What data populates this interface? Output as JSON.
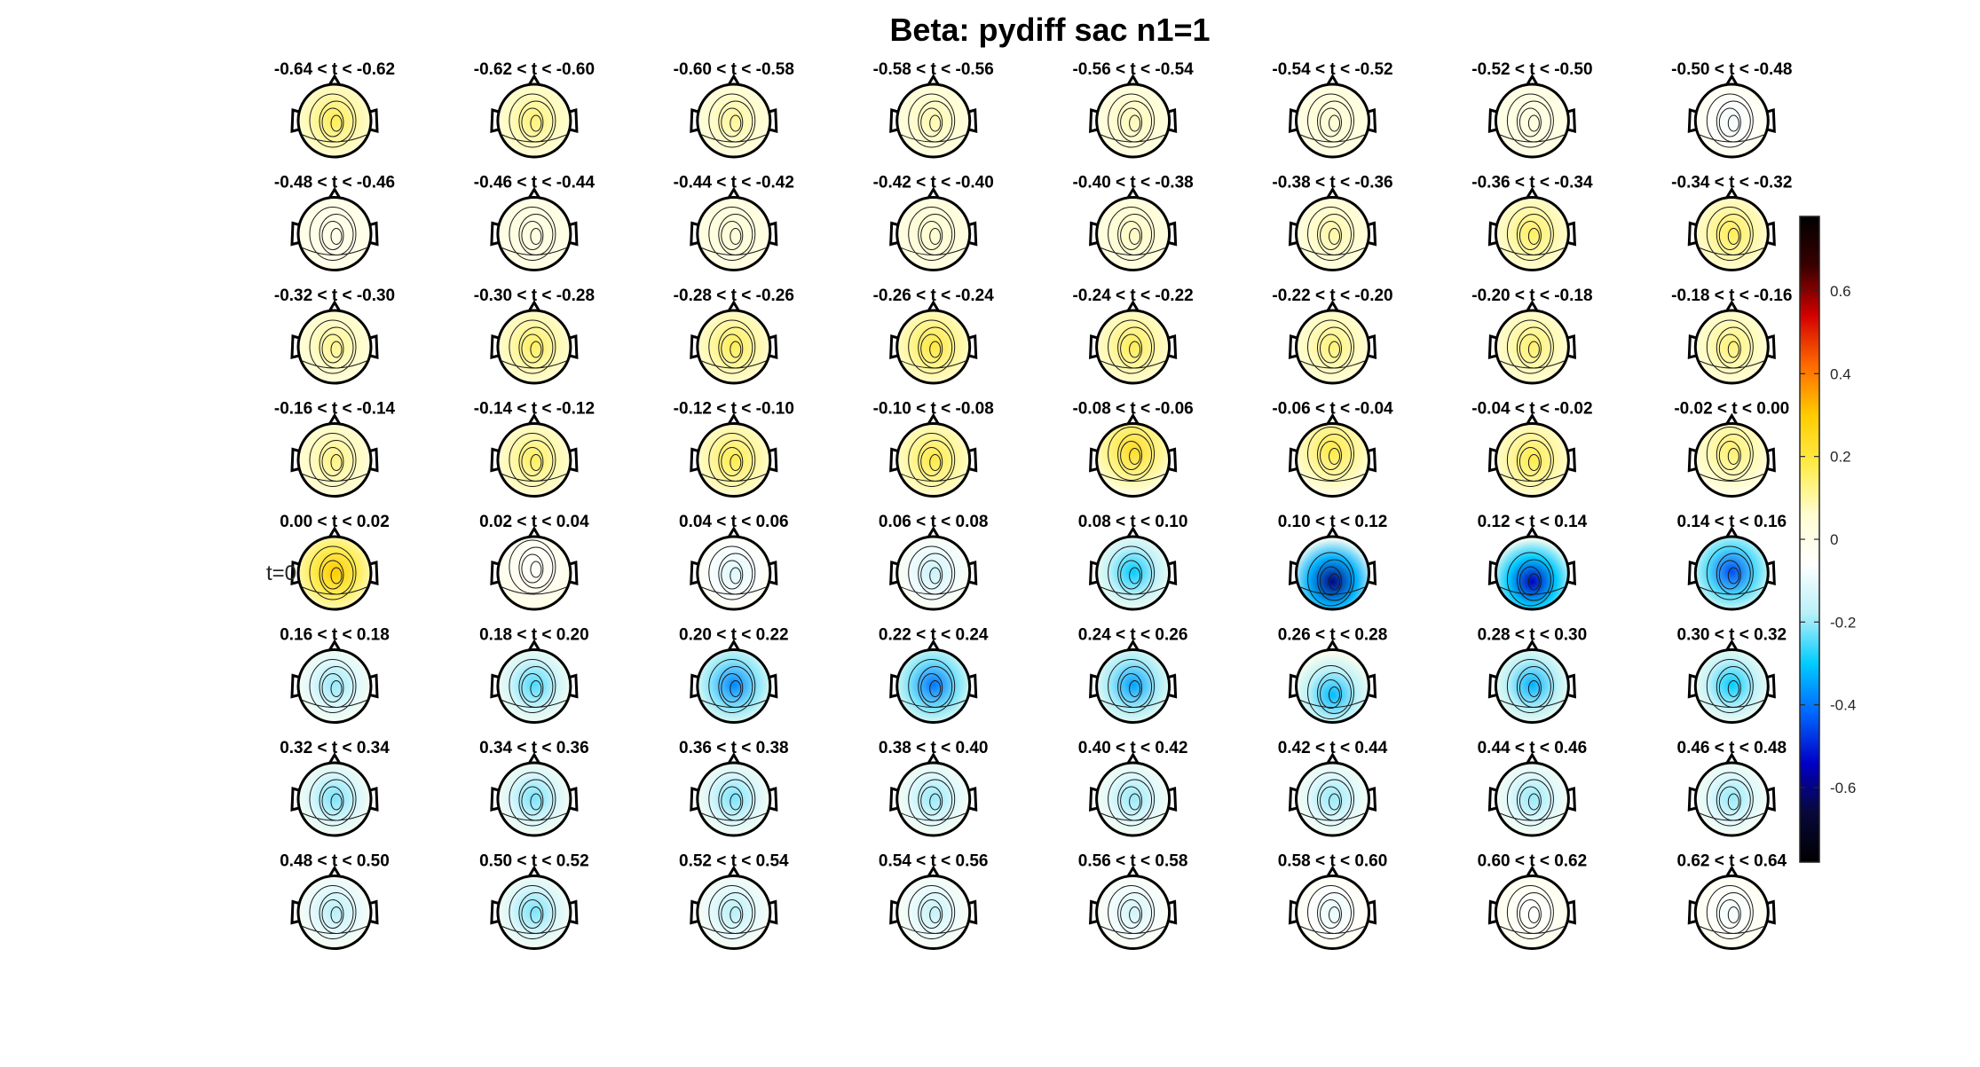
{
  "chart_data": {
    "type": "heatmap",
    "title": "Beta: pydiff sac  n1=1",
    "marker_label": "t=0",
    "marker_panel_index": 32,
    "layout": {
      "rows": 8,
      "cols": 8
    },
    "panels": [
      {
        "label": "-0.64 < t < -0.62",
        "value": 0.17,
        "focus": "center"
      },
      {
        "label": "-0.62 < t < -0.60",
        "value": 0.14,
        "focus": "center"
      },
      {
        "label": "-0.60 < t < -0.58",
        "value": 0.11,
        "focus": "center"
      },
      {
        "label": "-0.58 < t < -0.56",
        "value": 0.09,
        "focus": "center"
      },
      {
        "label": "-0.56 < t < -0.54",
        "value": 0.08,
        "focus": "center"
      },
      {
        "label": "-0.54 < t < -0.52",
        "value": 0.05,
        "focus": "center"
      },
      {
        "label": "-0.52 < t < -0.50",
        "value": 0.02,
        "focus": "center"
      },
      {
        "label": "-0.50 < t < -0.48",
        "value": -0.08,
        "focus": "center"
      },
      {
        "label": "-0.48 < t < -0.46",
        "value": 0.0,
        "focus": "center"
      },
      {
        "label": "-0.46 < t < -0.44",
        "value": 0.02,
        "focus": "center"
      },
      {
        "label": "-0.44 < t < -0.42",
        "value": 0.04,
        "focus": "center"
      },
      {
        "label": "-0.42 < t < -0.40",
        "value": 0.06,
        "focus": "center"
      },
      {
        "label": "-0.40 < t < -0.38",
        "value": 0.07,
        "focus": "center"
      },
      {
        "label": "-0.38 < t < -0.36",
        "value": 0.1,
        "focus": "center"
      },
      {
        "label": "-0.36 < t < -0.34",
        "value": 0.16,
        "focus": "center"
      },
      {
        "label": "-0.34 < t < -0.32",
        "value": 0.17,
        "focus": "center"
      },
      {
        "label": "-0.32 < t < -0.30",
        "value": 0.12,
        "focus": "center"
      },
      {
        "label": "-0.30 < t < -0.28",
        "value": 0.16,
        "focus": "center"
      },
      {
        "label": "-0.28 < t < -0.26",
        "value": 0.17,
        "focus": "center"
      },
      {
        "label": "-0.26 < t < -0.24",
        "value": 0.2,
        "focus": "center"
      },
      {
        "label": "-0.24 < t < -0.22",
        "value": 0.17,
        "focus": "center"
      },
      {
        "label": "-0.22 < t < -0.20",
        "value": 0.14,
        "focus": "center"
      },
      {
        "label": "-0.20 < t < -0.18",
        "value": 0.15,
        "focus": "center"
      },
      {
        "label": "-0.18 < t < -0.16",
        "value": 0.14,
        "focus": "center"
      },
      {
        "label": "-0.16 < t < -0.14",
        "value": 0.13,
        "focus": "center"
      },
      {
        "label": "-0.14 < t < -0.12",
        "value": 0.16,
        "focus": "center"
      },
      {
        "label": "-0.12 < t < -0.10",
        "value": 0.18,
        "focus": "center"
      },
      {
        "label": "-0.10 < t < -0.08",
        "value": 0.19,
        "focus": "center"
      },
      {
        "label": "-0.08 < t < -0.06",
        "value": 0.24,
        "focus": "upper"
      },
      {
        "label": "-0.06 < t < -0.04",
        "value": 0.19,
        "focus": "upper"
      },
      {
        "label": "-0.04 < t < -0.02",
        "value": 0.18,
        "focus": "center"
      },
      {
        "label": "-0.02 < t < 0.00",
        "value": 0.15,
        "focus": "upper"
      },
      {
        "label": "0.00 < t < 0.02",
        "value": 0.3,
        "focus": "center"
      },
      {
        "label": "0.02 < t < 0.04",
        "value": -0.05,
        "focus": "upper"
      },
      {
        "label": "0.04 < t < 0.06",
        "value": -0.12,
        "focus": "center"
      },
      {
        "label": "0.06 < t < 0.08",
        "value": -0.15,
        "focus": "center"
      },
      {
        "label": "0.08 < t < 0.10",
        "value": -0.3,
        "focus": "center"
      },
      {
        "label": "0.10 < t < 0.12",
        "value": -0.6,
        "focus": "lower"
      },
      {
        "label": "0.12 < t < 0.14",
        "value": -0.55,
        "focus": "lower"
      },
      {
        "label": "0.14 < t < 0.16",
        "value": -0.45,
        "focus": "center"
      },
      {
        "label": "0.16 < t < 0.18",
        "value": -0.2,
        "focus": "center"
      },
      {
        "label": "0.18 < t < 0.20",
        "value": -0.25,
        "focus": "center"
      },
      {
        "label": "0.20 < t < 0.22",
        "value": -0.38,
        "focus": "center"
      },
      {
        "label": "0.22 < t < 0.24",
        "value": -0.4,
        "focus": "center"
      },
      {
        "label": "0.24 < t < 0.26",
        "value": -0.35,
        "focus": "center"
      },
      {
        "label": "0.26 < t < 0.28",
        "value": -0.32,
        "focus": "lower"
      },
      {
        "label": "0.28 < t < 0.30",
        "value": -0.33,
        "focus": "center"
      },
      {
        "label": "0.30 < t < 0.32",
        "value": -0.3,
        "focus": "center"
      },
      {
        "label": "0.32 < t < 0.34",
        "value": -0.22,
        "focus": "center"
      },
      {
        "label": "0.34 < t < 0.36",
        "value": -0.22,
        "focus": "center"
      },
      {
        "label": "0.36 < t < 0.38",
        "value": -0.22,
        "focus": "center"
      },
      {
        "label": "0.38 < t < 0.40",
        "value": -0.2,
        "focus": "center"
      },
      {
        "label": "0.40 < t < 0.42",
        "value": -0.2,
        "focus": "center"
      },
      {
        "label": "0.42 < t < 0.44",
        "value": -0.2,
        "focus": "center"
      },
      {
        "label": "0.44 < t < 0.46",
        "value": -0.2,
        "focus": "center"
      },
      {
        "label": "0.46 < t < 0.48",
        "value": -0.2,
        "focus": "center"
      },
      {
        "label": "0.48 < t < 0.50",
        "value": -0.18,
        "focus": "center"
      },
      {
        "label": "0.50 < t < 0.52",
        "value": -0.22,
        "focus": "center"
      },
      {
        "label": "0.52 < t < 0.54",
        "value": -0.18,
        "focus": "center"
      },
      {
        "label": "0.54 < t < 0.56",
        "value": -0.16,
        "focus": "center"
      },
      {
        "label": "0.56 < t < 0.58",
        "value": -0.14,
        "focus": "center"
      },
      {
        "label": "0.58 < t < 0.60",
        "value": -0.1,
        "focus": "center"
      },
      {
        "label": "0.60 < t < 0.62",
        "value": -0.06,
        "focus": "center"
      },
      {
        "label": "0.62 < t < 0.64",
        "value": -0.08,
        "focus": "center"
      }
    ],
    "colorbar": {
      "range": [
        -0.78,
        0.78
      ],
      "ticks": [
        -0.6,
        -0.4,
        -0.2,
        0,
        0.2,
        0.4,
        0.6
      ],
      "tick_labels": [
        "-0.6",
        "-0.4",
        "-0.2",
        "0",
        "0.2",
        "0.4",
        "0.6"
      ],
      "colormap": [
        "#000000",
        "#08083a",
        "#0000c8",
        "#0066ff",
        "#00ccff",
        "#b8f0f8",
        "#ffffff",
        "#fffdd0",
        "#ffec4a",
        "#ffcc00",
        "#ff6a00",
        "#d40000",
        "#3a0000",
        "#000000"
      ]
    }
  }
}
